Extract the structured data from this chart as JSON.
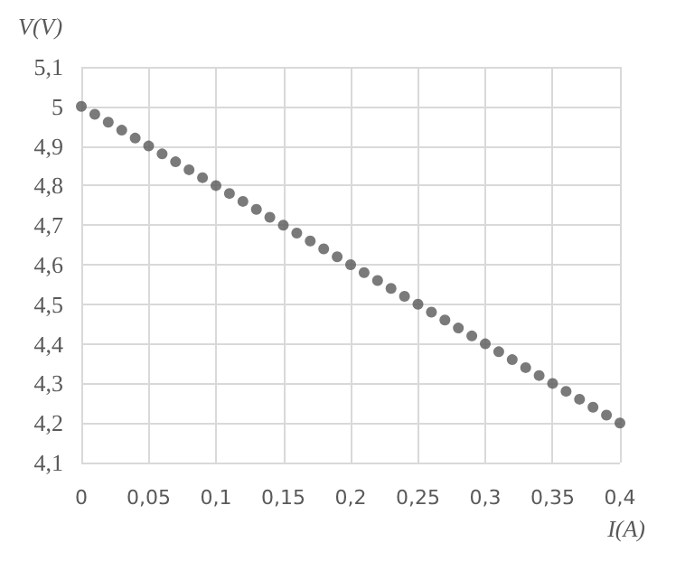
{
  "chart_data": {
    "type": "scatter",
    "xlabel": "I(A)",
    "ylabel": "V(V)",
    "x": [
      0,
      0.01,
      0.02,
      0.03,
      0.04,
      0.05,
      0.06,
      0.07,
      0.08,
      0.09,
      0.1,
      0.11,
      0.12,
      0.13,
      0.14,
      0.15,
      0.16,
      0.17,
      0.18,
      0.19,
      0.2,
      0.21,
      0.22,
      0.23,
      0.24,
      0.25,
      0.26,
      0.27,
      0.28,
      0.29,
      0.3,
      0.31,
      0.32,
      0.33,
      0.34,
      0.35,
      0.36,
      0.37,
      0.38,
      0.39,
      0.4
    ],
    "series": [
      {
        "color": "#595959",
        "values": [
          5,
          4.98,
          4.96,
          4.94,
          4.92,
          4.9,
          4.88,
          4.86,
          4.84,
          4.82,
          4.8,
          4.78,
          4.76,
          4.74,
          4.72,
          4.7,
          4.68,
          4.66,
          4.64,
          4.62,
          4.6,
          4.58,
          4.56,
          4.54,
          4.52,
          4.5,
          4.48,
          4.46,
          4.44,
          4.42,
          4.4,
          4.38,
          4.36,
          4.34,
          4.32,
          4.3,
          4.28,
          4.26,
          4.24,
          4.22,
          4.2
        ]
      }
    ],
    "xlim": [
      0,
      0.4
    ],
    "xticks": [
      0,
      {
        "value": 0.05,
        "label": "0,05"
      },
      {
        "value": 0.1,
        "label": "0,1"
      },
      {
        "value": 0.15,
        "label": "0,15"
      },
      {
        "value": 0.2,
        "label": "0,2"
      },
      {
        "value": 0.25,
        "label": "0,25"
      },
      {
        "value": 0.3,
        "label": "0,3"
      },
      {
        "value": 0.35,
        "label": "0,35"
      },
      {
        "value": 0.4,
        "label": "0,4"
      }
    ],
    "ylim": [
      4.1,
      5.1
    ],
    "yticks": [
      {
        "value": 4.1,
        "label": "4,1"
      },
      {
        "value": 4.2,
        "label": "4,2"
      },
      {
        "value": 4.3,
        "label": "4,3"
      },
      {
        "value": 4.4,
        "label": "4,4"
      },
      {
        "value": 4.5,
        "label": "4,5"
      },
      {
        "value": 4.6,
        "label": "4,6"
      },
      {
        "value": 4.7,
        "label": "4,7"
      },
      {
        "value": 4.8,
        "label": "4,8"
      },
      {
        "value": 4.9,
        "label": "4,9"
      },
      5,
      {
        "value": 5.1,
        "label": "5,1"
      }
    ],
    "grid": true,
    "marker": "circle"
  }
}
